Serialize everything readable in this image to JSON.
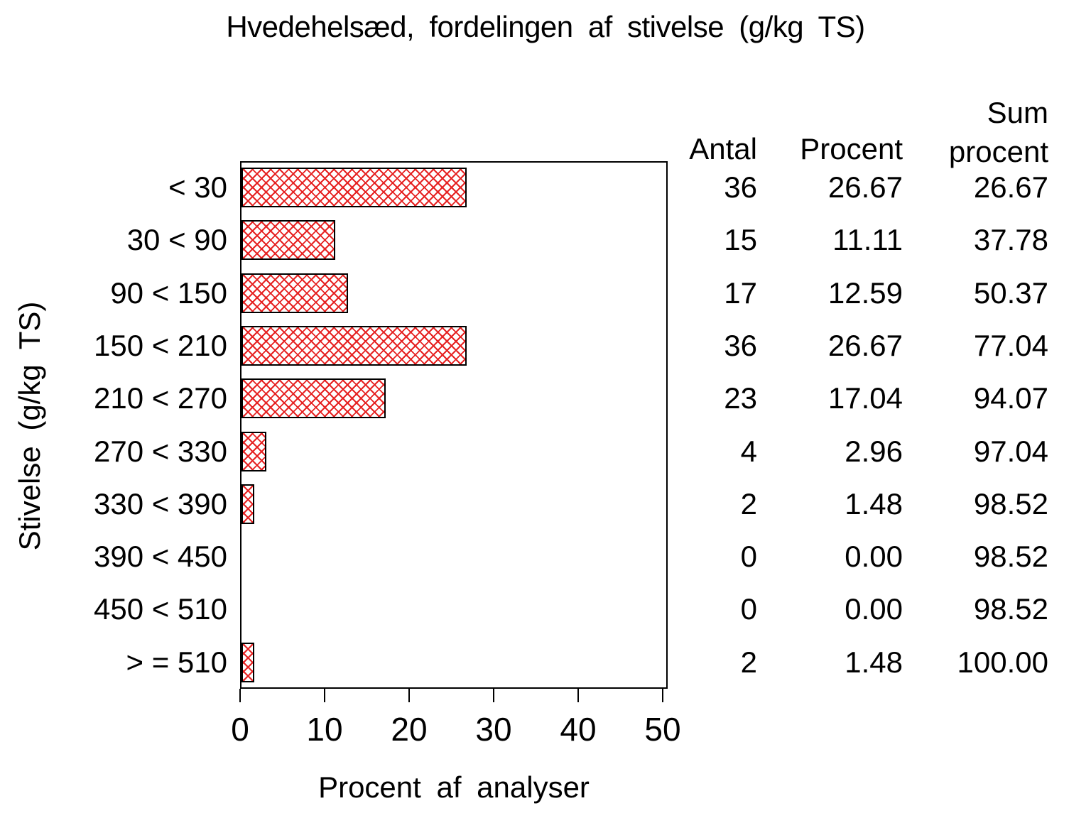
{
  "chart_data": {
    "type": "bar",
    "orientation": "horizontal",
    "title": "Hvedehelsæd, fordelingen af stivelse (g/kg TS)",
    "xlabel": "Procent af analyser",
    "ylabel": "Stivelse (g/kg TS)",
    "xlim": [
      0,
      50
    ],
    "x_ticks": [
      "0",
      "10",
      "20",
      "30",
      "40",
      "50"
    ],
    "categories": [
      "< 30",
      "30 < 90",
      "90 < 150",
      "150 < 210",
      "210 < 270",
      "270 < 330",
      "330 < 390",
      "390 < 450",
      "450 < 510",
      "> = 510"
    ],
    "values": [
      26.67,
      11.11,
      12.59,
      26.67,
      17.04,
      2.96,
      1.48,
      0.0,
      0.0,
      1.48
    ],
    "bar_fill": "crosshatch",
    "bar_color": "#e62222",
    "bar_border_color": "#000000",
    "grid": false,
    "legend": "none"
  },
  "table": {
    "headers": {
      "antal": "Antal",
      "procent": "Procent",
      "sum_line1": "Sum",
      "sum_line2": "procent"
    },
    "rows": [
      {
        "antal": "36",
        "procent": "26.67",
        "sum": "26.67"
      },
      {
        "antal": "15",
        "procent": "11.11",
        "sum": "37.78"
      },
      {
        "antal": "17",
        "procent": "12.59",
        "sum": "50.37"
      },
      {
        "antal": "36",
        "procent": "26.67",
        "sum": "77.04"
      },
      {
        "antal": "23",
        "procent": "17.04",
        "sum": "94.07"
      },
      {
        "antal": "4",
        "procent": "2.96",
        "sum": "97.04"
      },
      {
        "antal": "2",
        "procent": "1.48",
        "sum": "98.52"
      },
      {
        "antal": "0",
        "procent": "0.00",
        "sum": "98.52"
      },
      {
        "antal": "0",
        "procent": "0.00",
        "sum": "98.52"
      },
      {
        "antal": "2",
        "procent": "1.48",
        "sum": "100.00"
      }
    ]
  }
}
